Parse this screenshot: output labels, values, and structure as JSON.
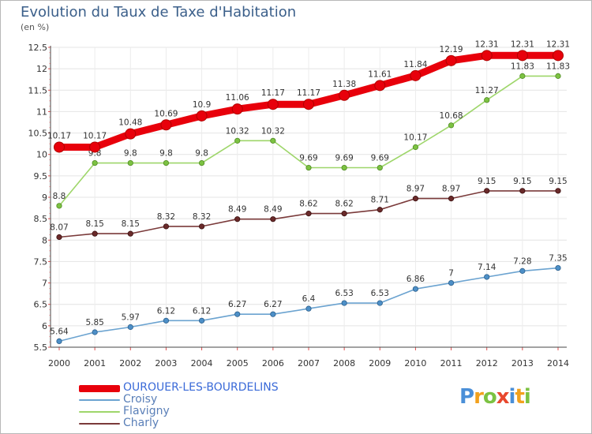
{
  "unit_label": "(en %)",
  "logo": {
    "text": "Proxiti",
    "letters": [
      {
        "ch": "P",
        "color": "#4a8fd8"
      },
      {
        "ch": "r",
        "color": "#f2a11d"
      },
      {
        "ch": "o",
        "color": "#7cc242"
      },
      {
        "ch": "x",
        "color": "#e8482e"
      },
      {
        "ch": "i",
        "color": "#4a8fd8"
      },
      {
        "ch": "t",
        "color": "#f2a11d"
      },
      {
        "ch": "i",
        "color": "#7cc242"
      }
    ]
  },
  "chart_data": {
    "type": "line",
    "title": "Evolution du Taux de Taxe d'Habitation",
    "xlabel": "",
    "ylabel": "(en %)",
    "x": [
      "2000",
      "2001",
      "2002",
      "2003",
      "2004",
      "2005",
      "2006",
      "2007",
      "2008",
      "2009",
      "2010",
      "2011",
      "2012",
      "2013",
      "2014"
    ],
    "ylim": [
      5.5,
      12.5
    ],
    "yticks": [
      "5.5",
      "6",
      "6.5",
      "7",
      "7.5",
      "8",
      "8.5",
      "9",
      "9.5",
      "10",
      "10.5",
      "11",
      "11.5",
      "12",
      "12.5"
    ],
    "grid": true,
    "legend_position": "bottom-left",
    "series": [
      {
        "name": "OUROUER-LES-BOURDELINS",
        "color": "#e8000b",
        "marker_stroke": "#b00000",
        "highlight": true,
        "values": [
          10.17,
          10.17,
          10.48,
          10.69,
          10.9,
          11.06,
          11.17,
          11.17,
          11.38,
          11.61,
          11.84,
          12.19,
          12.31,
          12.31,
          12.31
        ],
        "labels": [
          "10.17",
          "10.17",
          "10.48",
          "10.69",
          "10.9",
          "11.06",
          "11.17",
          "11.17",
          "11.38",
          "11.61",
          "11.84",
          "12.19",
          "12.31",
          "12.31",
          "12.31"
        ]
      },
      {
        "name": "Croisy",
        "color": "#6ba3d0",
        "marker_fill": "#4d8fc7",
        "marker_stroke": "#2b5f8c",
        "highlight": false,
        "values": [
          5.64,
          5.85,
          5.97,
          6.12,
          6.12,
          6.27,
          6.27,
          6.4,
          6.53,
          6.53,
          6.86,
          7,
          7.14,
          7.28,
          7.35
        ],
        "labels": [
          "5.64",
          "5.85",
          "5.97",
          "6.12",
          "6.12",
          "6.27",
          "6.27",
          "6.4",
          "6.53",
          "6.53",
          "6.86",
          "7",
          "7.14",
          "7.28",
          "7.35"
        ]
      },
      {
        "name": "Flavigny",
        "color": "#9ed66a",
        "marker_fill": "#7cc242",
        "marker_stroke": "#4f8a22",
        "highlight": false,
        "values": [
          8.8,
          9.8,
          9.8,
          9.8,
          9.8,
          10.32,
          10.32,
          9.69,
          9.69,
          9.69,
          10.17,
          10.68,
          11.27,
          11.83,
          11.83
        ],
        "labels": [
          "8.8",
          "9.8",
          "9.8",
          "9.8",
          "9.8",
          "10.32",
          "10.32",
          "9.69",
          "9.69",
          "9.69",
          "10.17",
          "10.68",
          "11.27",
          "11.83",
          "11.83"
        ]
      },
      {
        "name": "Charly",
        "color": "#7a3a3a",
        "marker_fill": "#6a2a2a",
        "marker_stroke": "#3a0f0f",
        "highlight": false,
        "values": [
          8.07,
          8.15,
          8.15,
          8.32,
          8.32,
          8.49,
          8.49,
          8.62,
          8.62,
          8.71,
          8.97,
          8.97,
          9.15,
          9.15,
          9.15
        ],
        "labels": [
          "8.07",
          "8.15",
          "8.15",
          "8.32",
          "8.32",
          "8.49",
          "8.49",
          "8.62",
          "8.62",
          "8.71",
          "8.97",
          "8.97",
          "9.15",
          "9.15",
          "9.15"
        ]
      }
    ]
  }
}
